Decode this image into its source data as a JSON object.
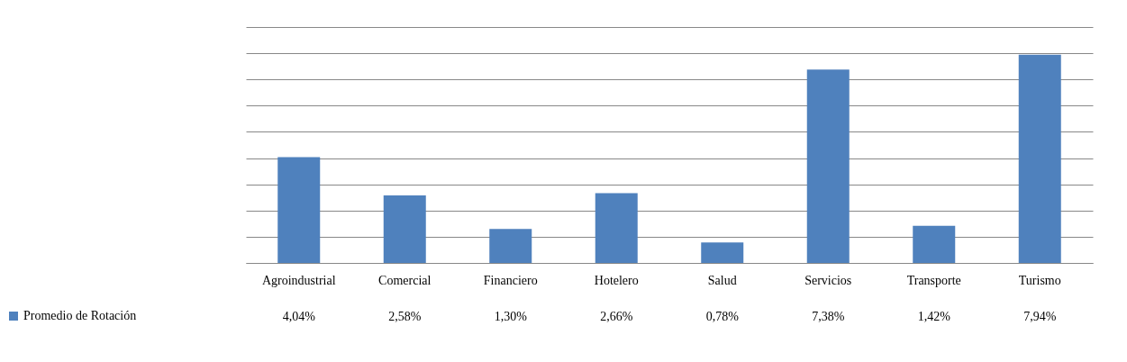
{
  "chart_data": {
    "type": "bar",
    "categories": [
      "Agroindustrial",
      "Comercial",
      "Financiero",
      "Hotelero",
      "Salud",
      "Servicios",
      "Transporte",
      "Turismo"
    ],
    "series": [
      {
        "name": "Promedio de Rotación",
        "color": "#4f81bd",
        "values": [
          4.04,
          2.58,
          1.3,
          2.66,
          0.78,
          7.38,
          1.42,
          7.94
        ],
        "value_labels": [
          "4,04%",
          "2,58%",
          "1,30%",
          "2,66%",
          "0,78%",
          "7,38%",
          "1,42%",
          "7,94%"
        ]
      }
    ],
    "ylim": [
      0,
      9
    ],
    "yticks": [
      {
        "value": 0,
        "label": null
      },
      {
        "value": 1,
        "label": null
      },
      {
        "value": 2,
        "label": null
      },
      {
        "value": 3,
        "label": null
      },
      {
        "value": 4,
        "label": null
      },
      {
        "value": 5,
        "label": null
      },
      {
        "value": 6,
        "label": null
      },
      {
        "value": 7,
        "label": null
      },
      {
        "value": 8,
        "label": null
      },
      {
        "value": 9,
        "label": null
      }
    ],
    "grid": "y",
    "tick_labels": "x",
    "legend": "bottom left"
  }
}
